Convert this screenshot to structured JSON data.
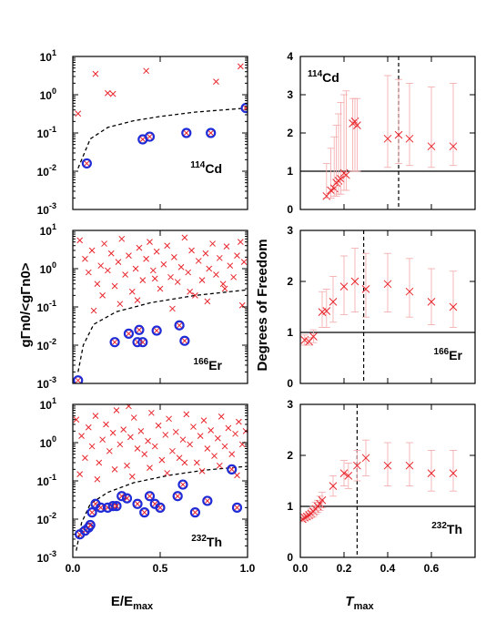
{
  "figure": {
    "left_xlabel_main": "E/E",
    "left_xlabel_sub": "max",
    "left_ylabel": "gΓn0/<gΓn0>",
    "right_xlabel_main": "T",
    "right_xlabel_sub": "max",
    "right_ylabel": "Degrees of Freedom"
  },
  "colors": {
    "cross": "#e8262c",
    "circle": "#1f2bd6",
    "errorbar": "#f4a6a8",
    "threshold": "#000000"
  },
  "chart_data": [
    {
      "type": "scatter",
      "isotope_mass": "114",
      "isotope_element": "Cd",
      "xlim": [
        0,
        1
      ],
      "ylim_log10": [
        -3,
        1
      ],
      "xticks": [
        "",
        "",
        ""
      ],
      "yticks": [
        "10",
        "10",
        "10",
        "10",
        "10"
      ],
      "yticks_exp": [
        "-3",
        "-2",
        "-1",
        "0",
        "1"
      ],
      "crosses": [
        [
          0.03,
          0.32
        ],
        [
          0.13,
          3.5
        ],
        [
          0.2,
          1.1
        ],
        [
          0.23,
          1.05
        ],
        [
          0.42,
          4.2
        ],
        [
          0.82,
          2.2
        ],
        [
          0.96,
          5.5
        ]
      ],
      "circles": [
        [
          0.08,
          0.016
        ],
        [
          0.4,
          0.068
        ],
        [
          0.44,
          0.08
        ],
        [
          0.65,
          0.1
        ],
        [
          0.79,
          0.1
        ],
        [
          0.99,
          0.45
        ]
      ],
      "threshold_curve": [
        [
          0.03,
          0.012
        ],
        [
          0.1,
          0.07
        ],
        [
          0.2,
          0.14
        ],
        [
          0.35,
          0.21
        ],
        [
          0.5,
          0.27
        ],
        [
          0.7,
          0.35
        ],
        [
          1.0,
          0.45
        ]
      ]
    },
    {
      "type": "scatter",
      "isotope_mass": "166",
      "isotope_element": "Er",
      "xlim": [
        0,
        1
      ],
      "ylim_log10": [
        -3,
        1
      ],
      "xticks": [
        "",
        "",
        ""
      ],
      "yticks": [
        "10",
        "10",
        "10",
        "10",
        "10"
      ],
      "yticks_exp": [
        "-3",
        "-2",
        "-1",
        "0",
        "1"
      ],
      "crosses": [
        [
          0.04,
          5.5
        ],
        [
          0.07,
          1.8
        ],
        [
          0.09,
          0.8
        ],
        [
          0.11,
          3.0
        ],
        [
          0.14,
          0.4
        ],
        [
          0.16,
          1.2
        ],
        [
          0.18,
          4.5
        ],
        [
          0.2,
          0.9
        ],
        [
          0.22,
          2.5
        ],
        [
          0.24,
          0.35
        ],
        [
          0.26,
          1.5
        ],
        [
          0.28,
          6.0
        ],
        [
          0.3,
          0.7
        ],
        [
          0.32,
          2.2
        ],
        [
          0.34,
          0.25
        ],
        [
          0.36,
          1.0
        ],
        [
          0.38,
          3.5
        ],
        [
          0.4,
          0.5
        ],
        [
          0.42,
          1.8
        ],
        [
          0.44,
          5.0
        ],
        [
          0.46,
          0.9
        ],
        [
          0.48,
          2.8
        ],
        [
          0.5,
          0.3
        ],
        [
          0.52,
          1.3
        ],
        [
          0.54,
          4.0
        ],
        [
          0.56,
          0.6
        ],
        [
          0.58,
          2.0
        ],
        [
          0.6,
          0.45
        ],
        [
          0.62,
          1.1
        ],
        [
          0.64,
          6.5
        ],
        [
          0.66,
          0.8
        ],
        [
          0.68,
          3.0
        ],
        [
          0.7,
          0.2
        ],
        [
          0.72,
          1.6
        ],
        [
          0.74,
          0.5
        ],
        [
          0.76,
          2.5
        ],
        [
          0.78,
          1.0
        ],
        [
          0.8,
          4.5
        ],
        [
          0.82,
          0.7
        ],
        [
          0.84,
          1.9
        ],
        [
          0.86,
          0.4
        ],
        [
          0.88,
          3.8
        ],
        [
          0.9,
          1.2
        ],
        [
          0.92,
          0.6
        ],
        [
          0.94,
          2.2
        ],
        [
          0.96,
          5.0
        ],
        [
          0.98,
          1.5
        ],
        [
          0.12,
          0.08
        ],
        [
          0.17,
          0.2
        ],
        [
          0.27,
          0.12
        ],
        [
          0.37,
          0.15
        ],
        [
          0.47,
          0.55
        ],
        [
          0.57,
          0.09
        ],
        [
          0.67,
          0.25
        ],
        [
          0.77,
          0.14
        ],
        [
          0.87,
          0.3
        ],
        [
          0.97,
          0.11
        ]
      ],
      "circles": [
        [
          0.03,
          0.0012
        ],
        [
          0.24,
          0.012
        ],
        [
          0.32,
          0.02
        ],
        [
          0.37,
          0.012
        ],
        [
          0.38,
          0.025
        ],
        [
          0.4,
          0.012
        ],
        [
          0.48,
          0.024
        ],
        [
          0.61,
          0.033
        ],
        [
          0.64,
          0.013
        ]
      ],
      "threshold_curve": [
        [
          0.03,
          0.002
        ],
        [
          0.06,
          0.01
        ],
        [
          0.12,
          0.035
        ],
        [
          0.25,
          0.075
        ],
        [
          0.45,
          0.13
        ],
        [
          0.7,
          0.2
        ],
        [
          1.0,
          0.28
        ]
      ]
    },
    {
      "type": "scatter",
      "isotope_mass": "232",
      "isotope_element": "Th",
      "xlim": [
        0,
        1
      ],
      "ylim_log10": [
        -3,
        1
      ],
      "xticks": [
        "0.0",
        "0.5",
        "1.0"
      ],
      "yticks": [
        "10",
        "10",
        "10",
        "10",
        "10"
      ],
      "yticks_exp": [
        "-3",
        "-2",
        "-1",
        "0",
        "1"
      ],
      "crosses": [
        [
          0.02,
          4.0
        ],
        [
          0.05,
          1.5
        ],
        [
          0.07,
          0.4
        ],
        [
          0.09,
          2.5
        ],
        [
          0.11,
          0.8
        ],
        [
          0.13,
          5.0
        ],
        [
          0.15,
          0.3
        ],
        [
          0.17,
          1.2
        ],
        [
          0.19,
          3.0
        ],
        [
          0.21,
          0.6
        ],
        [
          0.23,
          1.8
        ],
        [
          0.25,
          7.0
        ],
        [
          0.27,
          0.9
        ],
        [
          0.29,
          2.2
        ],
        [
          0.31,
          0.25
        ],
        [
          0.33,
          1.4
        ],
        [
          0.35,
          4.5
        ],
        [
          0.37,
          0.7
        ],
        [
          0.39,
          2.0
        ],
        [
          0.41,
          0.5
        ],
        [
          0.43,
          1.1
        ],
        [
          0.45,
          6.0
        ],
        [
          0.47,
          0.8
        ],
        [
          0.49,
          2.8
        ],
        [
          0.51,
          0.35
        ],
        [
          0.53,
          1.6
        ],
        [
          0.55,
          4.2
        ],
        [
          0.57,
          0.6
        ],
        [
          0.59,
          1.9
        ],
        [
          0.61,
          0.4
        ],
        [
          0.63,
          1.2
        ],
        [
          0.65,
          5.5
        ],
        [
          0.67,
          0.9
        ],
        [
          0.69,
          2.6
        ],
        [
          0.71,
          0.3
        ],
        [
          0.73,
          1.5
        ],
        [
          0.75,
          3.8
        ],
        [
          0.77,
          0.7
        ],
        [
          0.79,
          2.1
        ],
        [
          0.81,
          0.45
        ],
        [
          0.83,
          1.3
        ],
        [
          0.85,
          4.8
        ],
        [
          0.87,
          0.8
        ],
        [
          0.89,
          2.4
        ],
        [
          0.91,
          0.5
        ],
        [
          0.93,
          1.7
        ],
        [
          0.95,
          3.5
        ],
        [
          0.97,
          0.9
        ],
        [
          0.99,
          2.0
        ],
        [
          0.04,
          0.15
        ],
        [
          0.14,
          0.11
        ],
        [
          0.24,
          0.2
        ],
        [
          0.34,
          0.13
        ],
        [
          0.44,
          0.22
        ],
        [
          0.54,
          0.16
        ],
        [
          0.64,
          0.3
        ],
        [
          0.74,
          0.18
        ],
        [
          0.84,
          0.25
        ],
        [
          0.94,
          0.14
        ],
        [
          0.32,
          9.0
        ]
      ],
      "circles": [
        [
          0.04,
          0.004
        ],
        [
          0.07,
          0.005
        ],
        [
          0.09,
          0.006
        ],
        [
          0.1,
          0.007
        ],
        [
          0.11,
          0.015
        ],
        [
          0.13,
          0.025
        ],
        [
          0.16,
          0.02
        ],
        [
          0.2,
          0.02
        ],
        [
          0.23,
          0.022
        ],
        [
          0.25,
          0.022
        ],
        [
          0.28,
          0.04
        ],
        [
          0.31,
          0.035
        ],
        [
          0.37,
          0.025
        ],
        [
          0.41,
          0.015
        ],
        [
          0.44,
          0.04
        ],
        [
          0.47,
          0.025
        ],
        [
          0.5,
          0.02
        ],
        [
          0.6,
          0.04
        ],
        [
          0.63,
          0.08
        ],
        [
          0.7,
          0.015
        ],
        [
          0.77,
          0.03
        ],
        [
          0.91,
          0.2
        ],
        [
          0.94,
          0.02
        ]
      ],
      "threshold_curve": [
        [
          0.02,
          0.0015
        ],
        [
          0.05,
          0.008
        ],
        [
          0.1,
          0.025
        ],
        [
          0.2,
          0.05
        ],
        [
          0.35,
          0.09
        ],
        [
          0.55,
          0.14
        ],
        [
          0.75,
          0.19
        ],
        [
          1.0,
          0.24
        ]
      ]
    },
    {
      "type": "scatter-errorbar",
      "isotope_mass": "114",
      "isotope_element": "Cd",
      "xlim": [
        0,
        0.8
      ],
      "ylim": [
        0,
        4
      ],
      "xticks": [
        "",
        "",
        "",
        "",
        ""
      ],
      "yticks": [
        "0",
        "1",
        "2",
        "3",
        "4"
      ],
      "reference_line": 1,
      "vertical_line": 0.45,
      "points": [
        [
          0.12,
          0.35,
          0.3,
          1.2
        ],
        [
          0.14,
          0.5,
          0.3,
          1.6
        ],
        [
          0.155,
          0.55,
          0.35,
          1.9
        ],
        [
          0.165,
          0.7,
          0.35,
          2.2
        ],
        [
          0.175,
          0.75,
          0.4,
          2.5
        ],
        [
          0.185,
          0.8,
          0.4,
          2.8
        ],
        [
          0.2,
          0.95,
          0.5,
          3.0
        ],
        [
          0.21,
          0.9,
          0.5,
          3.1
        ],
        [
          0.24,
          2.25,
          1.0,
          2.9
        ],
        [
          0.25,
          2.3,
          1.0,
          2.9
        ],
        [
          0.26,
          2.2,
          1.0,
          2.9
        ],
        [
          0.4,
          1.85,
          1.1,
          3.5
        ],
        [
          0.45,
          1.95,
          1.2,
          3.4
        ],
        [
          0.5,
          1.85,
          1.15,
          3.3
        ],
        [
          0.6,
          1.65,
          1.1,
          3.2
        ],
        [
          0.7,
          1.65,
          1.15,
          3.3
        ]
      ]
    },
    {
      "type": "scatter-errorbar",
      "isotope_mass": "166",
      "isotope_element": "Er",
      "xlim": [
        0,
        0.8
      ],
      "ylim": [
        0,
        3
      ],
      "xticks": [
        "",
        "",
        "",
        "",
        ""
      ],
      "yticks": [
        "0",
        "1",
        "2",
        "3"
      ],
      "reference_line": 1,
      "vertical_line": 0.29,
      "points": [
        [
          0.02,
          0.85,
          0.75,
          0.95
        ],
        [
          0.04,
          0.82,
          0.75,
          0.9
        ],
        [
          0.06,
          0.92,
          0.8,
          1.05
        ],
        [
          0.1,
          1.4,
          1.1,
          1.8
        ],
        [
          0.12,
          1.42,
          1.1,
          1.85
        ],
        [
          0.15,
          1.6,
          1.2,
          2.1
        ],
        [
          0.2,
          1.9,
          1.35,
          2.5
        ],
        [
          0.25,
          2.0,
          1.4,
          2.65
        ],
        [
          0.3,
          1.85,
          1.3,
          2.55
        ],
        [
          0.4,
          1.95,
          1.4,
          2.55
        ],
        [
          0.5,
          1.8,
          1.3,
          2.45
        ],
        [
          0.6,
          1.6,
          1.15,
          2.25
        ],
        [
          0.7,
          1.5,
          1.1,
          2.2
        ]
      ]
    },
    {
      "type": "scatter-errorbar",
      "isotope_mass": "232",
      "isotope_element": "Th",
      "xlim": [
        0,
        0.8
      ],
      "ylim": [
        0,
        3
      ],
      "xticks": [
        "0.0",
        "0.2",
        "0.4",
        "0.6",
        ""
      ],
      "yticks": [
        "0",
        "1",
        "2",
        "3"
      ],
      "reference_line": 1,
      "vertical_line": 0.26,
      "points": [
        [
          0.01,
          0.75,
          0.7,
          0.8
        ],
        [
          0.02,
          0.78,
          0.72,
          0.84
        ],
        [
          0.03,
          0.8,
          0.74,
          0.86
        ],
        [
          0.04,
          0.83,
          0.76,
          0.9
        ],
        [
          0.05,
          0.86,
          0.78,
          0.95
        ],
        [
          0.06,
          0.9,
          0.8,
          1.0
        ],
        [
          0.07,
          0.95,
          0.85,
          1.08
        ],
        [
          0.08,
          1.0,
          0.88,
          1.12
        ],
        [
          0.09,
          1.05,
          0.92,
          1.2
        ],
        [
          0.1,
          1.12,
          0.97,
          1.28
        ],
        [
          0.15,
          1.4,
          1.2,
          1.6
        ],
        [
          0.2,
          1.65,
          1.4,
          1.9
        ],
        [
          0.22,
          1.6,
          1.35,
          1.85
        ],
        [
          0.26,
          1.8,
          1.5,
          2.1
        ],
        [
          0.3,
          1.95,
          1.6,
          2.3
        ],
        [
          0.4,
          1.8,
          1.4,
          2.25
        ],
        [
          0.5,
          1.8,
          1.4,
          2.25
        ],
        [
          0.6,
          1.65,
          1.3,
          2.1
        ],
        [
          0.7,
          1.65,
          1.3,
          2.1
        ]
      ]
    }
  ]
}
